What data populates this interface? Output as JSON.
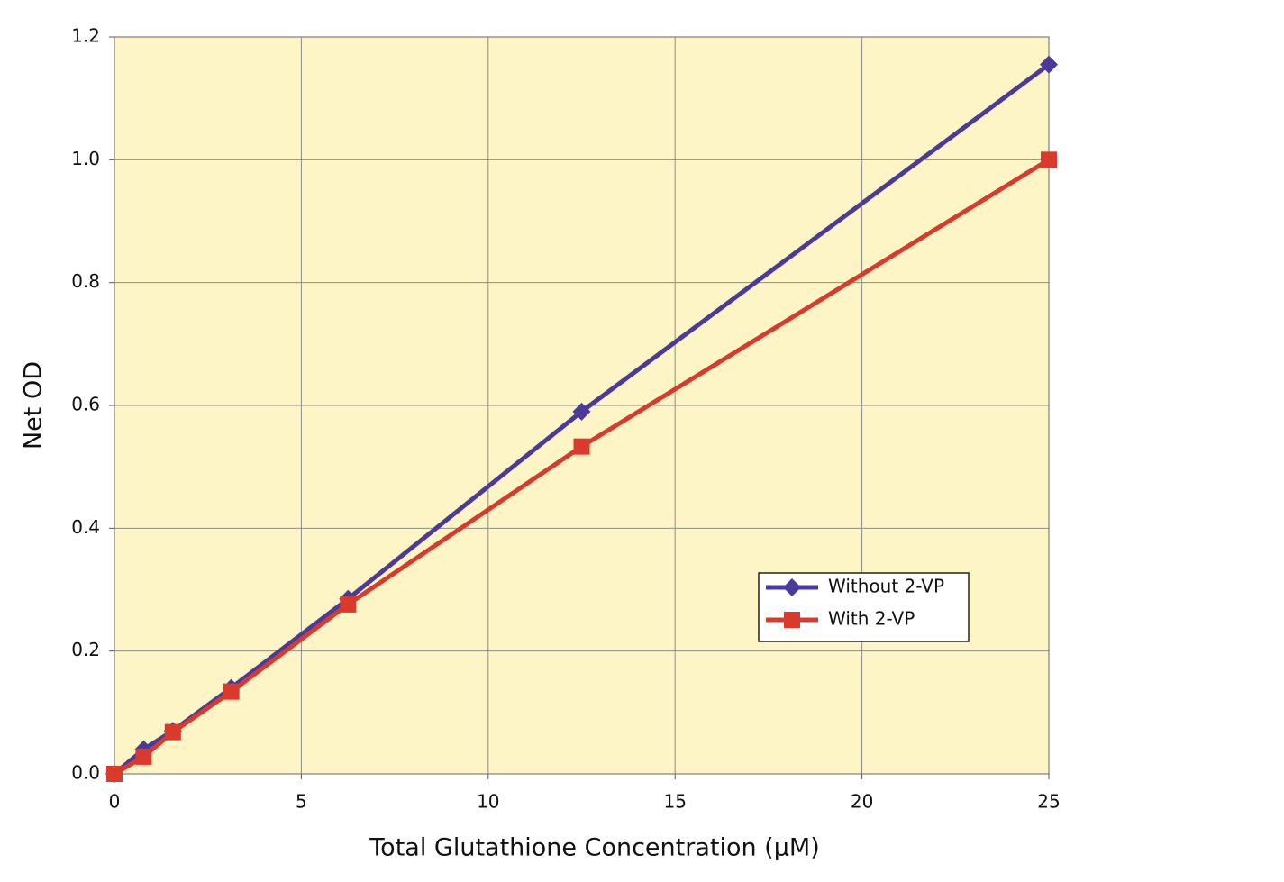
{
  "chart_data": {
    "type": "line",
    "x_label": "Total Glutathione Concentration (μM)",
    "y_label": "Net OD",
    "x": [
      0,
      0.78125,
      1.5625,
      3.125,
      6.25,
      12.5,
      25
    ],
    "series": [
      {
        "name": "Without 2-VP",
        "color": "#4b3a9c",
        "marker": "diamond",
        "values": [
          0,
          0.04,
          0.07,
          0.14,
          0.285,
          0.59,
          1.155
        ]
      },
      {
        "name": "With 2-VP",
        "color": "#d93a2b",
        "marker": "square",
        "values": [
          0,
          0.028,
          0.068,
          0.134,
          0.276,
          0.533,
          1.0
        ]
      }
    ],
    "xlim": [
      0,
      25
    ],
    "xticks": [
      0,
      5,
      10,
      15,
      20,
      25
    ],
    "ylim": [
      0,
      1.2
    ],
    "yticks": [
      {
        "value": 0,
        "label": "0.0"
      },
      0.2,
      0.4,
      0.6,
      0.8,
      {
        "value": 1,
        "label": "1.0"
      },
      1.2
    ],
    "grid": true,
    "legend": "lower right",
    "background": "#fdf5c6"
  }
}
